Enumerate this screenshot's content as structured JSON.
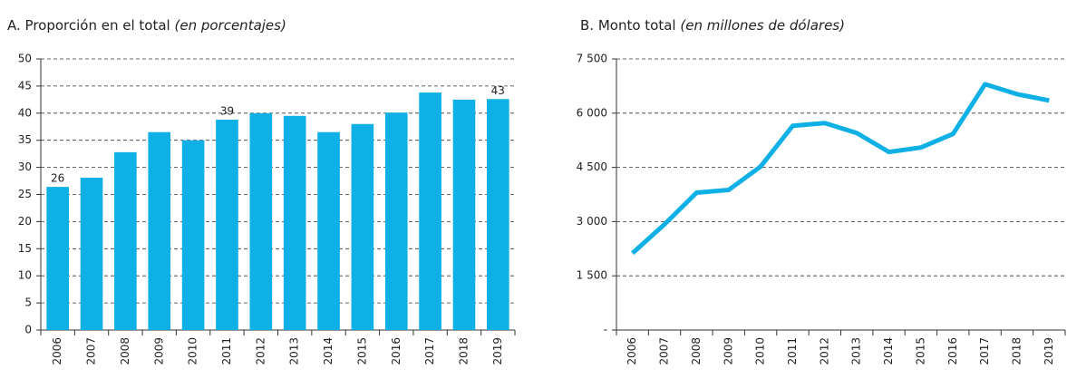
{
  "chart_data": [
    {
      "type": "bar",
      "title": "A. Proporción en el total",
      "title_note": "(en porcentajes)",
      "categories": [
        "2006",
        "2007",
        "2008",
        "2009",
        "2010",
        "2011",
        "2012",
        "2013",
        "2014",
        "2015",
        "2016",
        "2017",
        "2018",
        "2019"
      ],
      "values": [
        26.4,
        28.1,
        32.8,
        36.5,
        35,
        38.8,
        40,
        39.5,
        36.5,
        38,
        40.1,
        43.8,
        42.5,
        42.6
      ],
      "value_labels": [
        "26",
        null,
        null,
        null,
        null,
        "39",
        null,
        null,
        null,
        null,
        null,
        null,
        null,
        "43"
      ],
      "color": "#0fb0e6",
      "ylim": [
        0,
        50
      ],
      "yticks": [
        0,
        5,
        10,
        15,
        20,
        25,
        30,
        35,
        40,
        45,
        50
      ],
      "grid": true
    },
    {
      "type": "line",
      "title": "B. Monto total",
      "title_note": "(en millones de dólares)",
      "categories": [
        "2006",
        "2007",
        "2008",
        "2009",
        "2010",
        "2011",
        "2012",
        "2013",
        "2014",
        "2015",
        "2016",
        "2017",
        "2018",
        "2019"
      ],
      "values": [
        2125,
        2925,
        3800,
        3875,
        4525,
        5650,
        5725,
        5450,
        4925,
        5050,
        5425,
        6800,
        6525,
        6350
      ],
      "color": "#0fb0e6",
      "ylim": [
        0,
        7500
      ],
      "yticks": [
        {
          "value": 0,
          "label": "-"
        },
        {
          "value": 1500,
          "label": "1 500"
        },
        {
          "value": 3000,
          "label": "3 000"
        },
        {
          "value": 4500,
          "label": "4 500"
        },
        {
          "value": 6000,
          "label": "6 000"
        },
        {
          "value": 7500,
          "label": "7 500"
        }
      ],
      "grid": true
    }
  ]
}
